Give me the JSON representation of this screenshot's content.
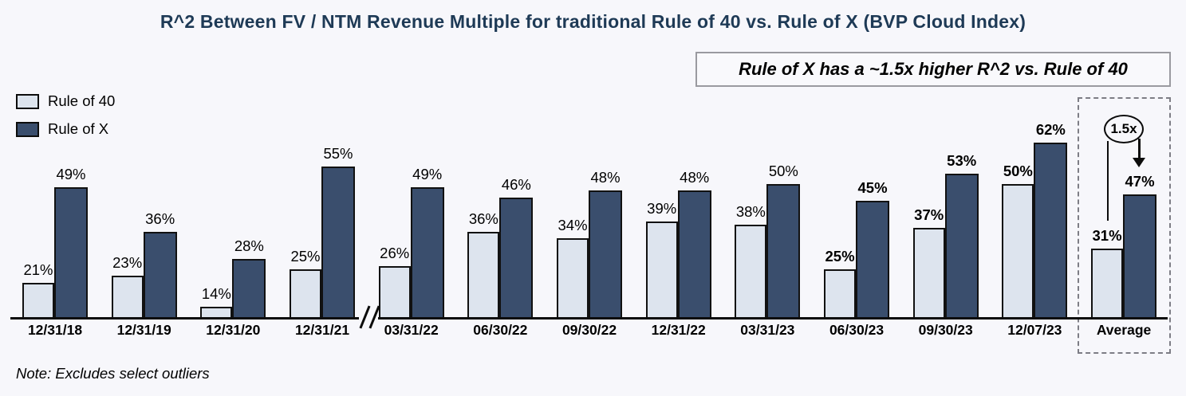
{
  "title": "R^2 Between FV / NTM Revenue Multiple for traditional Rule of 40 vs. Rule of X (BVP Cloud Index)",
  "callout": {
    "text": "Rule of X has a ~1.5x higher R^2 vs. Rule of 40"
  },
  "note": "Note: Excludes select outliers",
  "annotation": {
    "multiplier": "1.5x",
    "target_category": "Average"
  },
  "legend": {
    "items": [
      {
        "label": "Rule of 40",
        "color": "#dde4ee"
      },
      {
        "label": "Rule of X",
        "color": "#3a4e6d"
      }
    ]
  },
  "colors": {
    "background": "#f7f7fb",
    "rule_of_40": "#dde4ee",
    "rule_of_x": "#3a4e6d",
    "bar_border": "#111111",
    "axis": "#0c0c0c",
    "title": "#1e3a56",
    "dashed_box": "#7d7d85",
    "callout_border": "#9a9aa0"
  },
  "chart_data": {
    "type": "bar",
    "title": "R^2 Between FV / NTM Revenue Multiple for traditional Rule of 40 vs. Rule of X (BVP Cloud Index)",
    "categories": [
      "12/31/18",
      "12/31/19",
      "12/31/20",
      "12/31/21",
      "03/31/22",
      "06/30/22",
      "09/30/22",
      "12/31/22",
      "03/31/23",
      "06/30/23",
      "09/30/23",
      "12/07/23",
      "Average"
    ],
    "series": [
      {
        "name": "Rule of 40",
        "values": [
          21,
          23,
          14,
          25,
          26,
          36,
          34,
          39,
          38,
          25,
          37,
          50,
          31
        ]
      },
      {
        "name": "Rule of X",
        "values": [
          49,
          36,
          28,
          55,
          49,
          46,
          48,
          48,
          50,
          45,
          53,
          62,
          47
        ]
      }
    ],
    "value_suffix": "%",
    "bold_labels_from_index": 9,
    "axis_break_after_category": "12/31/21",
    "axis_break_symbol": "//",
    "highlighted_category": "Average",
    "legend_position": "top-left",
    "grid": false,
    "y_axis_visible": false
  }
}
